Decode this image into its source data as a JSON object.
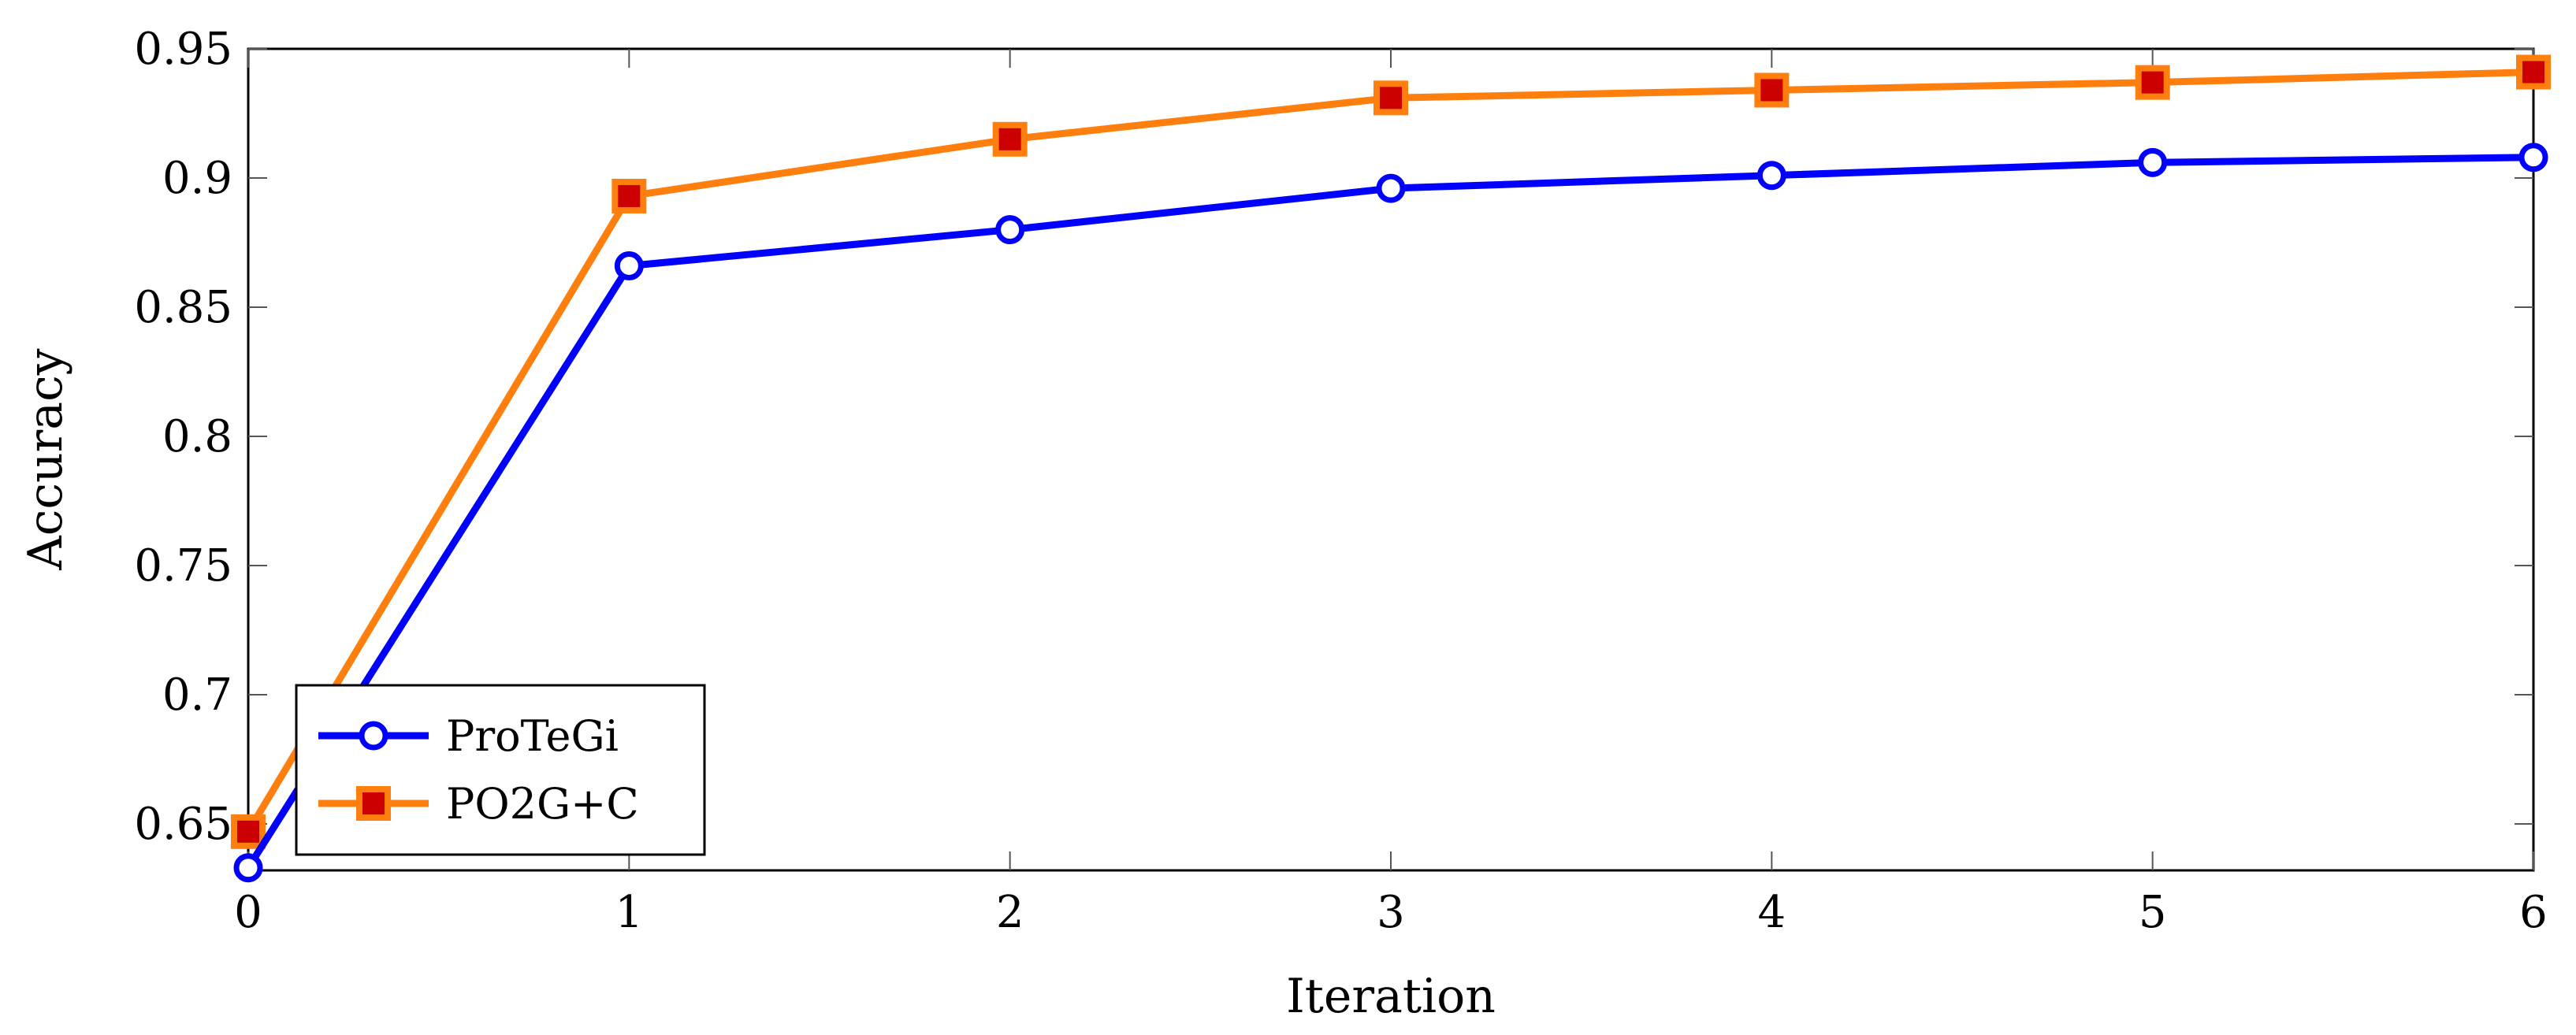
{
  "chart_data": {
    "type": "line",
    "title": "",
    "xlabel": "Iteration",
    "ylabel": "Accuracy",
    "x": [
      0,
      1,
      2,
      3,
      4,
      5,
      6
    ],
    "xlim": [
      0,
      6
    ],
    "ylim": [
      0.632,
      0.95
    ],
    "xticks": [
      "0",
      "1",
      "2",
      "3",
      "4",
      "5",
      "6"
    ],
    "yticks": [
      {
        "value": 0.65,
        "label": "0.65"
      },
      {
        "value": 0.7,
        "label": "0.7"
      },
      {
        "value": 0.75,
        "label": "0.75"
      },
      {
        "value": 0.8,
        "label": "0.8"
      },
      {
        "value": 0.85,
        "label": "0.85"
      },
      {
        "value": 0.9,
        "label": "0.9"
      },
      {
        "value": 0.95,
        "label": "0.95"
      }
    ],
    "grid": false,
    "legend_position": "bottom-left",
    "series": [
      {
        "name": "ProTeGi",
        "values": [
          0.633,
          0.866,
          0.88,
          0.896,
          0.901,
          0.906,
          0.908
        ],
        "color": "#0000ff",
        "marker": "circle"
      },
      {
        "name": "PO2G+C",
        "values": [
          0.647,
          0.893,
          0.915,
          0.931,
          0.934,
          0.937,
          0.941
        ],
        "color": "#ff7f0e",
        "marker_fill": "#cc0000",
        "marker": "square"
      }
    ]
  }
}
